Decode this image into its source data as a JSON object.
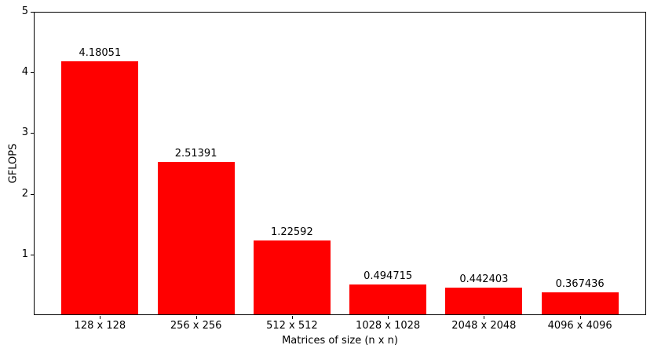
{
  "chart_data": {
    "type": "bar",
    "title": "",
    "categories": [
      "128 x 128",
      "256 x 256",
      "512 x 512",
      "1028 x 1028",
      "2048 x 2048",
      "4096 x 4096"
    ],
    "values": [
      4.18051,
      2.51391,
      1.22592,
      0.494715,
      0.442403,
      0.367436
    ],
    "value_labels": [
      "4.18051",
      "2.51391",
      "1.22592",
      "0.494715",
      "0.442403",
      "0.367436"
    ],
    "xlabel": "Matrices of size (n x n)",
    "ylabel": "GFLOPS",
    "ylim": [
      0,
      5
    ],
    "yticks": [
      1,
      2,
      3,
      4,
      5
    ],
    "bar_color": "#ff0000",
    "text_color": "#000000",
    "axis_color": "#000000",
    "background_color": "#ffffff",
    "grid": false,
    "legend": null,
    "bar_width_fraction": 0.8
  }
}
